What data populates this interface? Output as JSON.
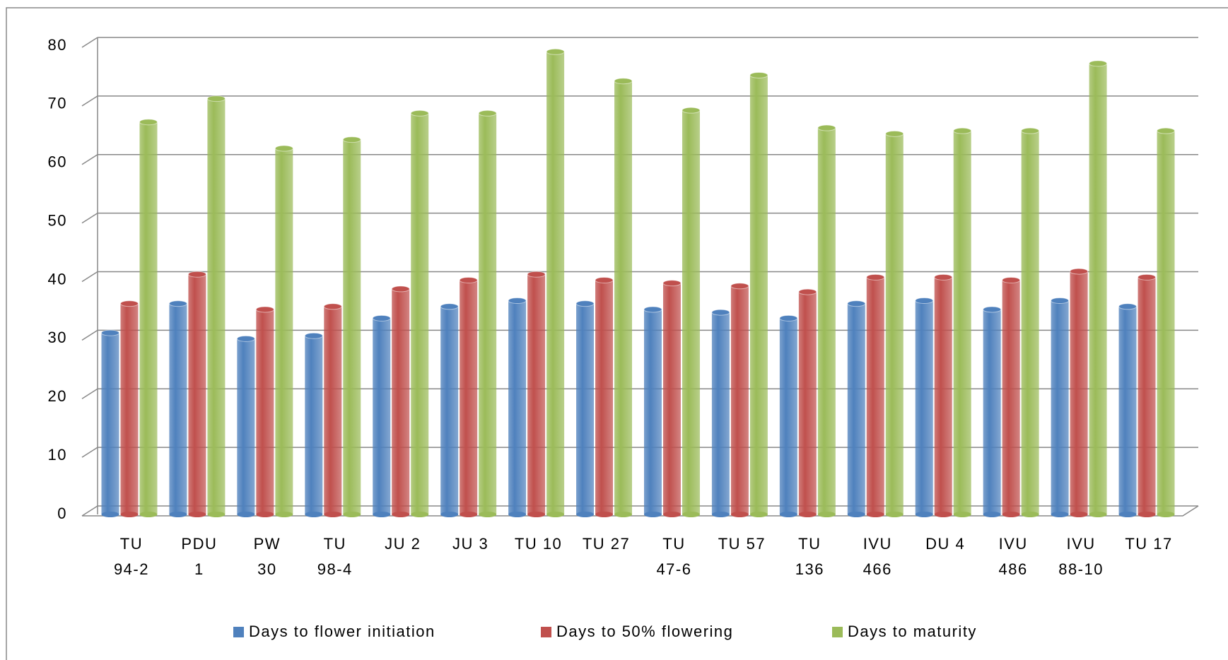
{
  "chart_data": {
    "type": "bar",
    "categories": [
      "TU\n94-2",
      "PDU\n1",
      "PW\n30",
      "TU\n98-4",
      "JU 2",
      "JU 3",
      "TU 10",
      "TU 27",
      "TU\n47-6",
      "TU 57",
      "TU\n136",
      "IVU\n466",
      "DU 4",
      "IVU\n486",
      "IVU\n88-10",
      "TU 17"
    ],
    "series": [
      {
        "name": "Days to flower initiation",
        "color": "#4f81bd",
        "values": [
          31,
          36,
          30,
          30.5,
          33.5,
          35.5,
          36.5,
          36,
          35,
          34.5,
          33.5,
          36,
          36.5,
          35,
          36.5,
          35.5
        ]
      },
      {
        "name": "Days to 50% flowering",
        "color": "#c0504d",
        "values": [
          36,
          41,
          35,
          35.5,
          38.5,
          40,
          41,
          40,
          39.5,
          39,
          38,
          40.5,
          40.5,
          40,
          41.5,
          40.5
        ]
      },
      {
        "name": "Days to maturity",
        "color": "#9bbb59",
        "values": [
          67,
          71,
          62.5,
          64,
          68.5,
          68.5,
          79,
          74,
          69,
          75,
          66,
          65,
          65.5,
          65.5,
          77,
          65.5
        ]
      }
    ],
    "ylim": [
      0,
      80
    ],
    "yticks": [
      0,
      10,
      20,
      30,
      40,
      50,
      60,
      70,
      80
    ],
    "grid": true,
    "legend": "bottom"
  }
}
